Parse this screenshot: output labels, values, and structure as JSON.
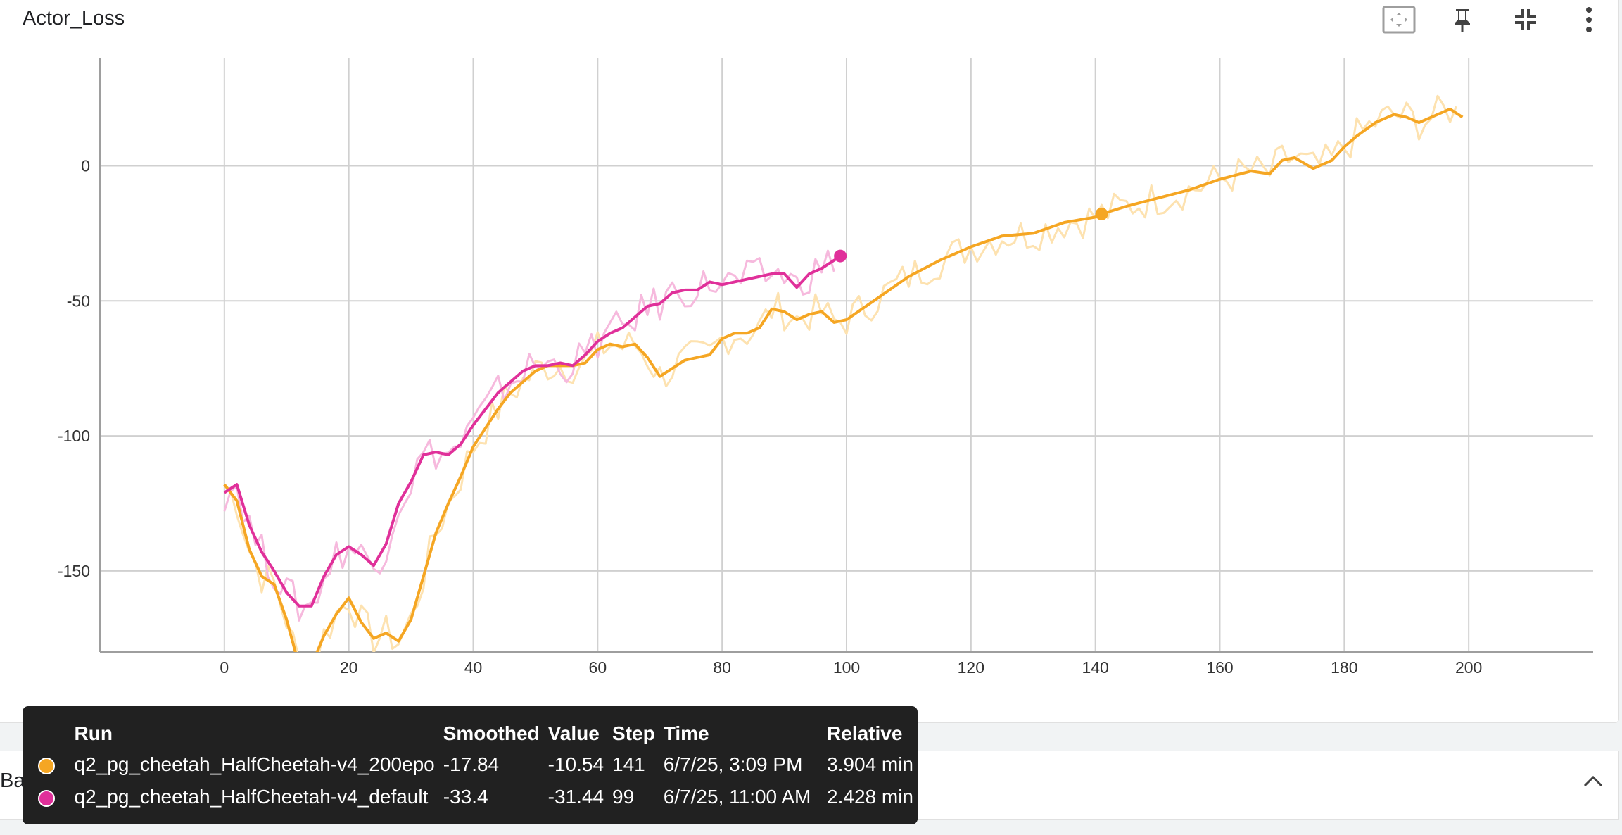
{
  "chart_title": "Actor_Loss",
  "toolbar": {
    "icons": [
      "fit-to-data-icon",
      "pin-icon",
      "collapse-fullscreen-icon",
      "more-vert-icon"
    ]
  },
  "colors": {
    "orange": "#f5a623",
    "orange_raw": "#fde2b0",
    "magenta": "#e0309a",
    "magenta_raw": "#f6b9dd"
  },
  "chart_data": {
    "type": "line",
    "title": "Actor_Loss",
    "xlabel": "",
    "ylabel": "",
    "xlim": [
      -20,
      220
    ],
    "ylim": [
      -180,
      40
    ],
    "x_ticks": [
      0,
      20,
      40,
      60,
      80,
      100,
      120,
      140,
      160,
      180,
      200
    ],
    "x_tick_labels": [
      "0",
      "20",
      "40",
      "60",
      "80",
      "100",
      "120",
      "140",
      "160",
      "180",
      "200"
    ],
    "y_ticks": [
      0,
      -50,
      -100,
      -150
    ],
    "y_tick_labels": [
      "0",
      "-50",
      "-100",
      "-150"
    ],
    "grid": true,
    "series": [
      {
        "name": "q2_pg_cheetah_HalfCheetah-v4_200epo",
        "color": "#f5a623",
        "x": [
          0,
          2,
          4,
          6,
          8,
          10,
          12,
          14,
          16,
          18,
          20,
          22,
          24,
          26,
          28,
          30,
          32,
          34,
          36,
          38,
          40,
          42,
          44,
          46,
          48,
          50,
          52,
          54,
          56,
          58,
          60,
          62,
          64,
          66,
          68,
          70,
          72,
          74,
          76,
          78,
          80,
          82,
          84,
          86,
          88,
          90,
          92,
          94,
          96,
          98,
          100,
          105,
          110,
          115,
          120,
          125,
          130,
          135,
          140,
          141,
          145,
          150,
          155,
          160,
          165,
          168,
          170,
          172,
          175,
          178,
          180,
          182,
          185,
          188,
          190,
          192,
          195,
          197,
          199
        ],
        "values": [
          -118,
          -124,
          -142,
          -152,
          -155,
          -168,
          -185,
          -185,
          -174,
          -166,
          -160,
          -169,
          -175,
          -173,
          -176,
          -168,
          -152,
          -136,
          -125,
          -115,
          -104,
          -97,
          -90,
          -84,
          -80,
          -76,
          -74,
          -74,
          -74,
          -73,
          -68,
          -66,
          -67,
          -66,
          -71,
          -78,
          -75,
          -72,
          -71,
          -70,
          -64,
          -62,
          -62,
          -60,
          -53,
          -54,
          -57,
          -55,
          -54,
          -58,
          -57,
          -49,
          -41,
          -35,
          -30,
          -26,
          -25,
          -21,
          -19,
          -17.84,
          -15,
          -12,
          -9,
          -5,
          -2,
          -3,
          2,
          3,
          -1,
          2,
          7,
          11,
          16,
          19,
          18,
          16,
          19,
          21,
          18
        ],
        "raw_values_shown": true,
        "tooltip": {
          "smoothed": "-17.84",
          "value": "-10.54",
          "step": "141",
          "time": "6/7/25, 3:09 PM",
          "relative": "3.904 min"
        }
      },
      {
        "name": "q2_pg_cheetah_HalfCheetah-v4_default",
        "color": "#e0309a",
        "x": [
          0,
          2,
          4,
          6,
          8,
          10,
          12,
          14,
          16,
          18,
          20,
          22,
          24,
          26,
          28,
          30,
          32,
          34,
          36,
          38,
          40,
          42,
          44,
          46,
          48,
          50,
          52,
          54,
          56,
          58,
          60,
          62,
          64,
          66,
          68,
          70,
          72,
          74,
          76,
          78,
          80,
          82,
          84,
          86,
          88,
          90,
          92,
          94,
          96,
          98,
          99
        ],
        "values": [
          -121,
          -118,
          -133,
          -143,
          -150,
          -158,
          -163,
          -163,
          -152,
          -144,
          -141,
          -144,
          -148,
          -140,
          -125,
          -117,
          -107,
          -106,
          -107,
          -103,
          -96,
          -90,
          -84,
          -80,
          -76,
          -74,
          -74,
          -73,
          -74,
          -70,
          -65,
          -62,
          -60,
          -56,
          -52,
          -51,
          -47,
          -46,
          -46,
          -43,
          -44,
          -43,
          -42,
          -41,
          -40,
          -40,
          -45,
          -40,
          -38,
          -35,
          -33.4
        ],
        "raw_values_shown": true,
        "tooltip": {
          "smoothed": "-33.4",
          "value": "-31.44",
          "step": "99",
          "time": "6/7/25, 11:00 AM",
          "relative": "2.428 min"
        }
      }
    ],
    "highlight_points": [
      {
        "series": "q2_pg_cheetah_HalfCheetah-v4_200epo",
        "x": 141,
        "y": -17.84
      },
      {
        "series": "q2_pg_cheetah_HalfCheetah-v4_default",
        "x": 99,
        "y": -33.4
      }
    ]
  },
  "tooltip": {
    "headers": {
      "run": "Run",
      "smoothed": "Smoothed",
      "value": "Value",
      "step": "Step",
      "time": "Time",
      "relative": "Relative"
    },
    "rows": [
      {
        "color": "#f5a623",
        "run": "q2_pg_cheetah_HalfCheetah-v4_200epo",
        "smoothed": "-17.84",
        "value": "-10.54",
        "step": "141",
        "time": "6/7/25, 3:09 PM",
        "relative": "3.904 min"
      },
      {
        "color": "#e0309a",
        "run": "q2_pg_cheetah_HalfCheetah-v4_default",
        "smoothed": "-33.4",
        "value": "-31.44",
        "step": "99",
        "time": "6/7/25, 11:00 AM",
        "relative": "2.428 min"
      }
    ]
  },
  "second_card": {
    "title": "Baseline_Loss",
    "icon": "chevron-up-icon"
  }
}
